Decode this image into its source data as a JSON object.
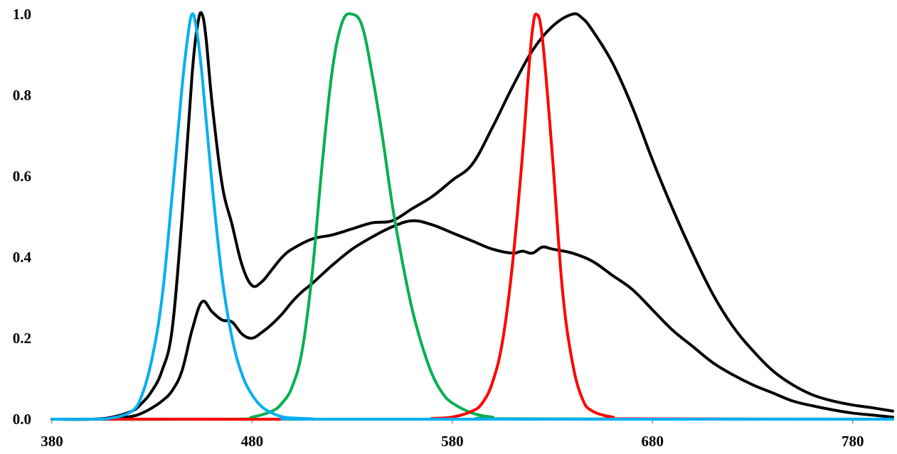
{
  "chart_data": {
    "type": "line",
    "title": "",
    "xlabel": "",
    "ylabel": "",
    "xlim": [
      380,
      800
    ],
    "ylim": [
      0,
      1.0
    ],
    "grid": false,
    "legend": "none",
    "x_ticks": [
      "380",
      "480",
      "580",
      "680",
      "780"
    ],
    "y_ticks": [
      "0.0",
      "0.2",
      "0.4",
      "0.6",
      "0.8",
      "1.0"
    ],
    "x_tick_values": [
      380,
      480,
      580,
      680,
      780
    ],
    "y_tick_values": [
      0.0,
      0.2,
      0.4,
      0.6,
      0.8,
      1.0
    ],
    "series": [
      {
        "color": "#00b0f0",
        "x": [
          380,
          400,
          410,
          420,
          425,
          430,
          435,
          440,
          445,
          448,
          450,
          452,
          455,
          460,
          465,
          470,
          475,
          480,
          485,
          490,
          495,
          500,
          510,
          520,
          800
        ],
        "y": [
          0,
          0,
          0.003,
          0.02,
          0.06,
          0.15,
          0.3,
          0.55,
          0.82,
          0.95,
          1.0,
          0.97,
          0.85,
          0.58,
          0.35,
          0.2,
          0.11,
          0.06,
          0.03,
          0.015,
          0.006,
          0.003,
          0.001,
          0,
          0
        ]
      },
      {
        "color": "#00b050",
        "x": [
          380,
          470,
          480,
          490,
          495,
          500,
          505,
          510,
          515,
          520,
          525,
          530,
          535,
          540,
          545,
          550,
          555,
          560,
          565,
          570,
          575,
          580,
          590,
          600,
          610,
          800
        ],
        "y": [
          0,
          0,
          0.005,
          0.02,
          0.04,
          0.08,
          0.17,
          0.36,
          0.63,
          0.86,
          0.98,
          1.0,
          0.97,
          0.85,
          0.7,
          0.53,
          0.39,
          0.27,
          0.18,
          0.11,
          0.065,
          0.04,
          0.015,
          0.005,
          0.001,
          0
        ]
      },
      {
        "color": "#ff0000",
        "x": [
          380,
          560,
          570,
          580,
          590,
          595,
          600,
          605,
          610,
          615,
          618,
          620,
          622,
          625,
          630,
          635,
          640,
          645,
          650,
          660,
          670,
          800
        ],
        "y": [
          0,
          0,
          0.002,
          0.005,
          0.02,
          0.04,
          0.09,
          0.19,
          0.38,
          0.65,
          0.85,
          0.96,
          1.0,
          0.94,
          0.65,
          0.32,
          0.14,
          0.05,
          0.02,
          0.005,
          0.001,
          0
        ]
      },
      {
        "color": "#000000",
        "x": [
          380,
          400,
          410,
          420,
          425,
          430,
          435,
          440,
          445,
          450,
          453,
          455,
          457,
          460,
          465,
          470,
          475,
          480,
          485,
          490,
          495,
          500,
          510,
          520,
          530,
          540,
          550,
          560,
          570,
          580,
          590,
          600,
          610,
          620,
          630,
          640,
          645,
          650,
          660,
          670,
          680,
          690,
          700,
          710,
          720,
          730,
          740,
          750,
          760,
          770,
          780,
          790,
          800
        ],
        "y": [
          0,
          0,
          0.005,
          0.02,
          0.04,
          0.07,
          0.12,
          0.22,
          0.5,
          0.85,
          0.98,
          1.0,
          0.94,
          0.78,
          0.58,
          0.48,
          0.38,
          0.33,
          0.34,
          0.37,
          0.4,
          0.42,
          0.445,
          0.455,
          0.47,
          0.485,
          0.49,
          0.52,
          0.55,
          0.59,
          0.63,
          0.72,
          0.82,
          0.91,
          0.97,
          1.0,
          0.99,
          0.96,
          0.88,
          0.77,
          0.64,
          0.52,
          0.41,
          0.31,
          0.23,
          0.17,
          0.12,
          0.085,
          0.06,
          0.045,
          0.035,
          0.028,
          0.02
        ]
      },
      {
        "color": "#000000",
        "x": [
          380,
          400,
          410,
          420,
          425,
          430,
          435,
          440,
          445,
          450,
          455,
          460,
          465,
          470,
          475,
          480,
          485,
          490,
          495,
          500,
          505,
          510,
          520,
          530,
          540,
          550,
          560,
          570,
          580,
          590,
          600,
          610,
          615,
          620,
          625,
          630,
          640,
          650,
          660,
          670,
          680,
          690,
          700,
          710,
          720,
          730,
          740,
          750,
          760,
          770,
          780,
          790,
          800
        ],
        "y": [
          0,
          0,
          0.002,
          0.007,
          0.015,
          0.028,
          0.045,
          0.07,
          0.12,
          0.22,
          0.29,
          0.265,
          0.245,
          0.24,
          0.21,
          0.2,
          0.215,
          0.235,
          0.26,
          0.29,
          0.315,
          0.335,
          0.38,
          0.42,
          0.45,
          0.475,
          0.49,
          0.48,
          0.46,
          0.44,
          0.42,
          0.41,
          0.415,
          0.41,
          0.425,
          0.42,
          0.41,
          0.39,
          0.355,
          0.32,
          0.27,
          0.22,
          0.18,
          0.14,
          0.11,
          0.085,
          0.065,
          0.045,
          0.033,
          0.023,
          0.015,
          0.01,
          0.005
        ]
      }
    ]
  }
}
